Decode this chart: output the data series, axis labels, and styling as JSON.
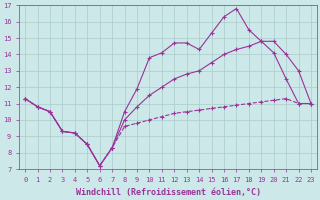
{
  "xlabel": "Windchill (Refroidissement éolien,°C)",
  "bg_color": "#cce8e8",
  "grid_color": "#aacccc",
  "line_color": "#993399",
  "xlim": [
    -0.5,
    23.5
  ],
  "ylim": [
    7,
    17
  ],
  "xticks": [
    0,
    1,
    2,
    3,
    4,
    5,
    6,
    7,
    8,
    9,
    10,
    11,
    12,
    13,
    14,
    15,
    16,
    17,
    18,
    19,
    20,
    21,
    22,
    23
  ],
  "yticks": [
    7,
    8,
    9,
    10,
    11,
    12,
    13,
    14,
    15,
    16,
    17
  ],
  "series_top_x": [
    0,
    1,
    2,
    3,
    4,
    5,
    6,
    7,
    8,
    9,
    10,
    11,
    12,
    13,
    14,
    15,
    16,
    17,
    18,
    19,
    20,
    21,
    22,
    23
  ],
  "series_top_y": [
    11.3,
    10.8,
    10.5,
    9.3,
    9.2,
    8.5,
    7.2,
    8.3,
    10.5,
    11.9,
    13.8,
    14.1,
    14.7,
    14.7,
    14.3,
    15.3,
    16.3,
    16.8,
    15.5,
    14.8,
    14.1,
    12.5,
    11.0,
    11.0
  ],
  "series_mid_x": [
    0,
    1,
    2,
    3,
    4,
    5,
    6,
    7,
    8,
    9,
    10,
    11,
    12,
    13,
    14,
    15,
    16,
    17,
    18,
    19,
    20,
    21,
    22,
    23
  ],
  "series_mid_y": [
    11.3,
    10.8,
    10.5,
    9.3,
    9.2,
    8.5,
    7.2,
    8.3,
    10.0,
    10.8,
    11.5,
    12.0,
    12.5,
    12.8,
    13.0,
    13.5,
    14.0,
    14.3,
    14.5,
    14.8,
    14.8,
    14.0,
    13.0,
    11.0
  ],
  "series_bot_x": [
    0,
    1,
    2,
    3,
    4,
    5,
    6,
    7,
    8,
    9,
    10,
    11,
    12,
    13,
    14,
    15,
    16,
    17,
    18,
    19,
    20,
    21,
    22,
    23
  ],
  "series_bot_y": [
    11.3,
    10.8,
    10.5,
    9.3,
    9.2,
    8.5,
    7.2,
    8.3,
    9.6,
    9.8,
    10.0,
    10.2,
    10.4,
    10.5,
    10.6,
    10.7,
    10.8,
    10.9,
    11.0,
    11.1,
    11.2,
    11.3,
    11.0,
    11.0
  ],
  "markersize": 3,
  "linewidth": 0.8,
  "tick_fontsize": 5,
  "xlabel_fontsize": 6
}
